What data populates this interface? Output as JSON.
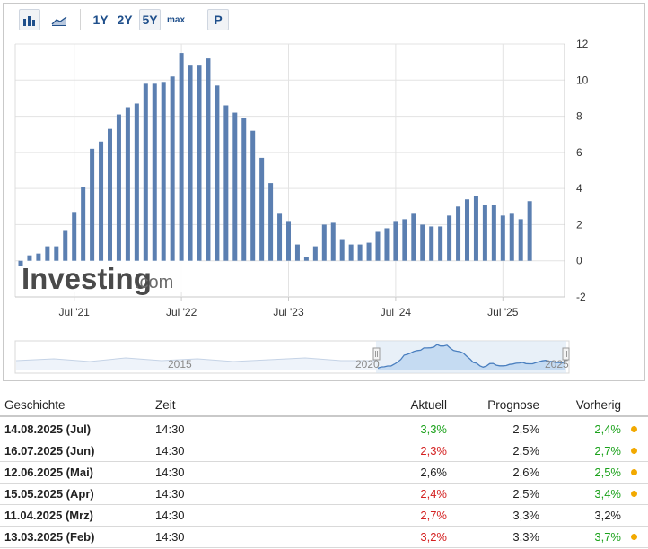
{
  "toolbar": {
    "bar_chart_icon": "bar-chart-icon",
    "area_chart_icon": "area-chart-icon",
    "range_1y": "1Y",
    "range_2y": "2Y",
    "range_5y": "5Y",
    "range_max": "max",
    "p_label": "P",
    "active_range": "5Y"
  },
  "watermark": {
    "brand": "Investing",
    "suffix": ".com"
  },
  "colors": {
    "bar": "#5b7fb1",
    "navigator_fill": "#cfe0f3",
    "navigator_line": "#4a7fbf",
    "positive": "#1aa11a",
    "negative": "#d42020",
    "dot": "#f2a900"
  },
  "chart_data": {
    "type": "bar",
    "ylim": [
      -2,
      12
    ],
    "yticks": [
      -2,
      0,
      2,
      4,
      6,
      8,
      10,
      12
    ],
    "xtick_labels": [
      "Jul '21",
      "Jul '22",
      "Jul '23",
      "Jul '24",
      "Jul '25"
    ],
    "xtick_positions": [
      6,
      18,
      30,
      42,
      54
    ],
    "grid": true,
    "values": [
      -0.3,
      0.3,
      0.4,
      0.8,
      0.8,
      1.7,
      2.7,
      4.1,
      6.2,
      6.6,
      7.3,
      8.1,
      8.5,
      8.7,
      9.8,
      9.8,
      9.9,
      10.2,
      11.5,
      10.8,
      10.8,
      11.2,
      9.7,
      8.6,
      8.2,
      7.9,
      7.2,
      5.7,
      4.3,
      2.6,
      2.2,
      0.9,
      0.2,
      0.8,
      2.0,
      2.1,
      1.2,
      0.9,
      0.9,
      1.0,
      1.6,
      1.8,
      2.2,
      2.3,
      2.6,
      2.0,
      1.9,
      1.9,
      2.5,
      3.0,
      3.4,
      3.6,
      3.1,
      3.1,
      2.5,
      2.6,
      2.3,
      3.3
    ]
  },
  "navigator": {
    "labels": [
      "2015",
      "2020",
      "2025"
    ]
  },
  "table": {
    "headers": {
      "date": "Geschichte",
      "time": "Zeit",
      "actual": "Aktuell",
      "forecast": "Prognose",
      "previous": "Vorherig"
    },
    "rows": [
      {
        "date": "14.08.2025 (Jul)",
        "time": "14:30",
        "actual": "3,3%",
        "actual_color": "green",
        "forecast": "2,5%",
        "previous": "2,4%",
        "previous_color": "green",
        "dot": true
      },
      {
        "date": "16.07.2025 (Jun)",
        "time": "14:30",
        "actual": "2,3%",
        "actual_color": "red",
        "forecast": "2,5%",
        "previous": "2,7%",
        "previous_color": "green",
        "dot": true
      },
      {
        "date": "12.06.2025 (Mai)",
        "time": "14:30",
        "actual": "2,6%",
        "actual_color": "black",
        "forecast": "2,6%",
        "previous": "2,5%",
        "previous_color": "green",
        "dot": true
      },
      {
        "date": "15.05.2025 (Apr)",
        "time": "14:30",
        "actual": "2,4%",
        "actual_color": "red",
        "forecast": "2,5%",
        "previous": "3,4%",
        "previous_color": "green",
        "dot": true
      },
      {
        "date": "11.04.2025 (Mrz)",
        "time": "14:30",
        "actual": "2,7%",
        "actual_color": "red",
        "forecast": "3,3%",
        "previous": "3,2%",
        "previous_color": "black",
        "dot": false
      },
      {
        "date": "13.03.2025 (Feb)",
        "time": "14:30",
        "actual": "3,2%",
        "actual_color": "red",
        "forecast": "3,3%",
        "previous": "3,7%",
        "previous_color": "green",
        "dot": true
      }
    ]
  }
}
